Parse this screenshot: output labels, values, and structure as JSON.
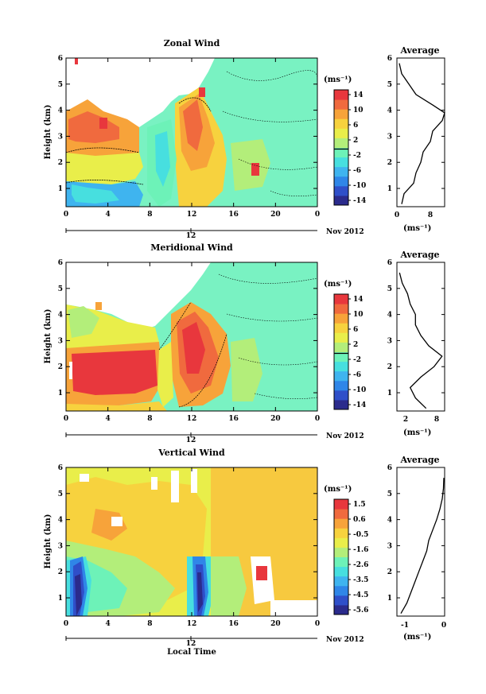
{
  "figure": {
    "panels": [
      {
        "id": "zonal",
        "title": "Zonal Wind",
        "ylabel": "Height (km)",
        "yticks": [
          1,
          2,
          3,
          4,
          5,
          6
        ],
        "xticks": [
          "0",
          "4",
          "8",
          "12",
          "16",
          "20",
          "0"
        ],
        "date_tick": "12",
        "date_label": "Nov 2012",
        "unit": "(ms⁻¹)",
        "cbar_ticks": [
          "14",
          "10",
          "6",
          "2",
          "-2",
          "-6",
          "-10",
          "-14"
        ],
        "avg_title": "Average",
        "avg_xticks": [
          "0",
          "8"
        ],
        "avg_unit": "(ms⁻¹)"
      },
      {
        "id": "meridional",
        "title": "Meridional Wind",
        "ylabel": "Height (km)",
        "yticks": [
          1,
          2,
          3,
          4,
          5,
          6
        ],
        "xticks": [
          "0",
          "4",
          "8",
          "12",
          "16",
          "20",
          "0"
        ],
        "date_tick": "12",
        "date_label": "Nov 2012",
        "unit": "(ms⁻¹)",
        "cbar_ticks": [
          "14",
          "10",
          "6",
          "2",
          "-2",
          "-6",
          "-10",
          "-14"
        ],
        "avg_title": "Average",
        "avg_xticks": [
          "2",
          "8"
        ],
        "avg_unit": "(ms⁻¹)"
      },
      {
        "id": "vertical",
        "title": "Vertical Wind",
        "ylabel": "Height (km)",
        "yticks": [
          1,
          2,
          3,
          4,
          5,
          6
        ],
        "xticks": [
          "0",
          "4",
          "8",
          "12",
          "16",
          "20",
          "0"
        ],
        "date_tick": "12",
        "date_label": "Nov 2012",
        "unit": "(ms⁻¹)",
        "cbar_ticks": [
          "1.5",
          "0.6",
          "-0.5",
          "-1.6",
          "-2.6",
          "-3.5",
          "-4.5",
          "-5.6"
        ],
        "avg_title": "Average",
        "avg_xticks": [
          "-1",
          "0"
        ],
        "avg_unit": "(ms⁻¹)",
        "xlabel": "Local Time"
      }
    ],
    "colors": {
      "scale": [
        "#2b2b8c",
        "#2f4fc9",
        "#2f86e8",
        "#3fb4ef",
        "#47dfdf",
        "#6df2b8",
        "#b3ee7a",
        "#e9ee4a",
        "#f7d23e",
        "#f7a33a",
        "#f06a3e",
        "#e8373d"
      ],
      "background_field": "#79f2c2",
      "vertical_background": "#f7c93f"
    }
  },
  "chart_data": [
    {
      "type": "heatmap",
      "title": "Zonal Wind",
      "xlabel": "",
      "ylabel": "Height (km)",
      "xlim_hours": [
        0,
        24
      ],
      "ylim": [
        0.3,
        6
      ],
      "color_range": [
        -14,
        14
      ],
      "profile": {
        "height": [
          0.4,
          0.8,
          1.2,
          1.6,
          2.0,
          2.4,
          2.8,
          3.2,
          3.6,
          3.9,
          4.2,
          4.6,
          5.0,
          5.4,
          5.8
        ],
        "value": [
          1.0,
          1.5,
          3.5,
          4.0,
          5.0,
          5.5,
          7.0,
          7.5,
          9.5,
          10.0,
          7.5,
          4.0,
          2.5,
          1.0,
          0.5
        ]
      }
    },
    {
      "type": "heatmap",
      "title": "Meridional Wind",
      "xlabel": "",
      "ylabel": "Height (km)",
      "xlim_hours": [
        0,
        24
      ],
      "ylim": [
        0.3,
        6
      ],
      "color_range": [
        -14,
        14
      ],
      "profile": {
        "height": [
          0.4,
          0.8,
          1.2,
          1.6,
          2.0,
          2.4,
          2.8,
          3.2,
          3.6,
          4.0,
          4.4,
          4.8,
          5.2,
          5.6
        ],
        "value": [
          6.0,
          4.0,
          3.0,
          5.0,
          7.5,
          9.0,
          6.5,
          5.0,
          4.0,
          4.0,
          3.0,
          2.5,
          1.5,
          1.0
        ]
      }
    },
    {
      "type": "heatmap",
      "title": "Vertical Wind",
      "xlabel": "Local Time",
      "ylabel": "Height (km)",
      "xlim_hours": [
        0,
        24
      ],
      "ylim": [
        0.3,
        6
      ],
      "color_range": [
        -5.6,
        1.5
      ],
      "profile": {
        "height": [
          0.4,
          0.8,
          1.2,
          1.6,
          2.0,
          2.4,
          2.8,
          3.2,
          3.6,
          4.0,
          4.4,
          4.8,
          5.2,
          5.6
        ],
        "value": [
          -1.1,
          -0.95,
          -0.85,
          -0.75,
          -0.65,
          -0.55,
          -0.45,
          -0.4,
          -0.3,
          -0.2,
          -0.12,
          -0.06,
          -0.03,
          -0.02
        ]
      }
    }
  ]
}
